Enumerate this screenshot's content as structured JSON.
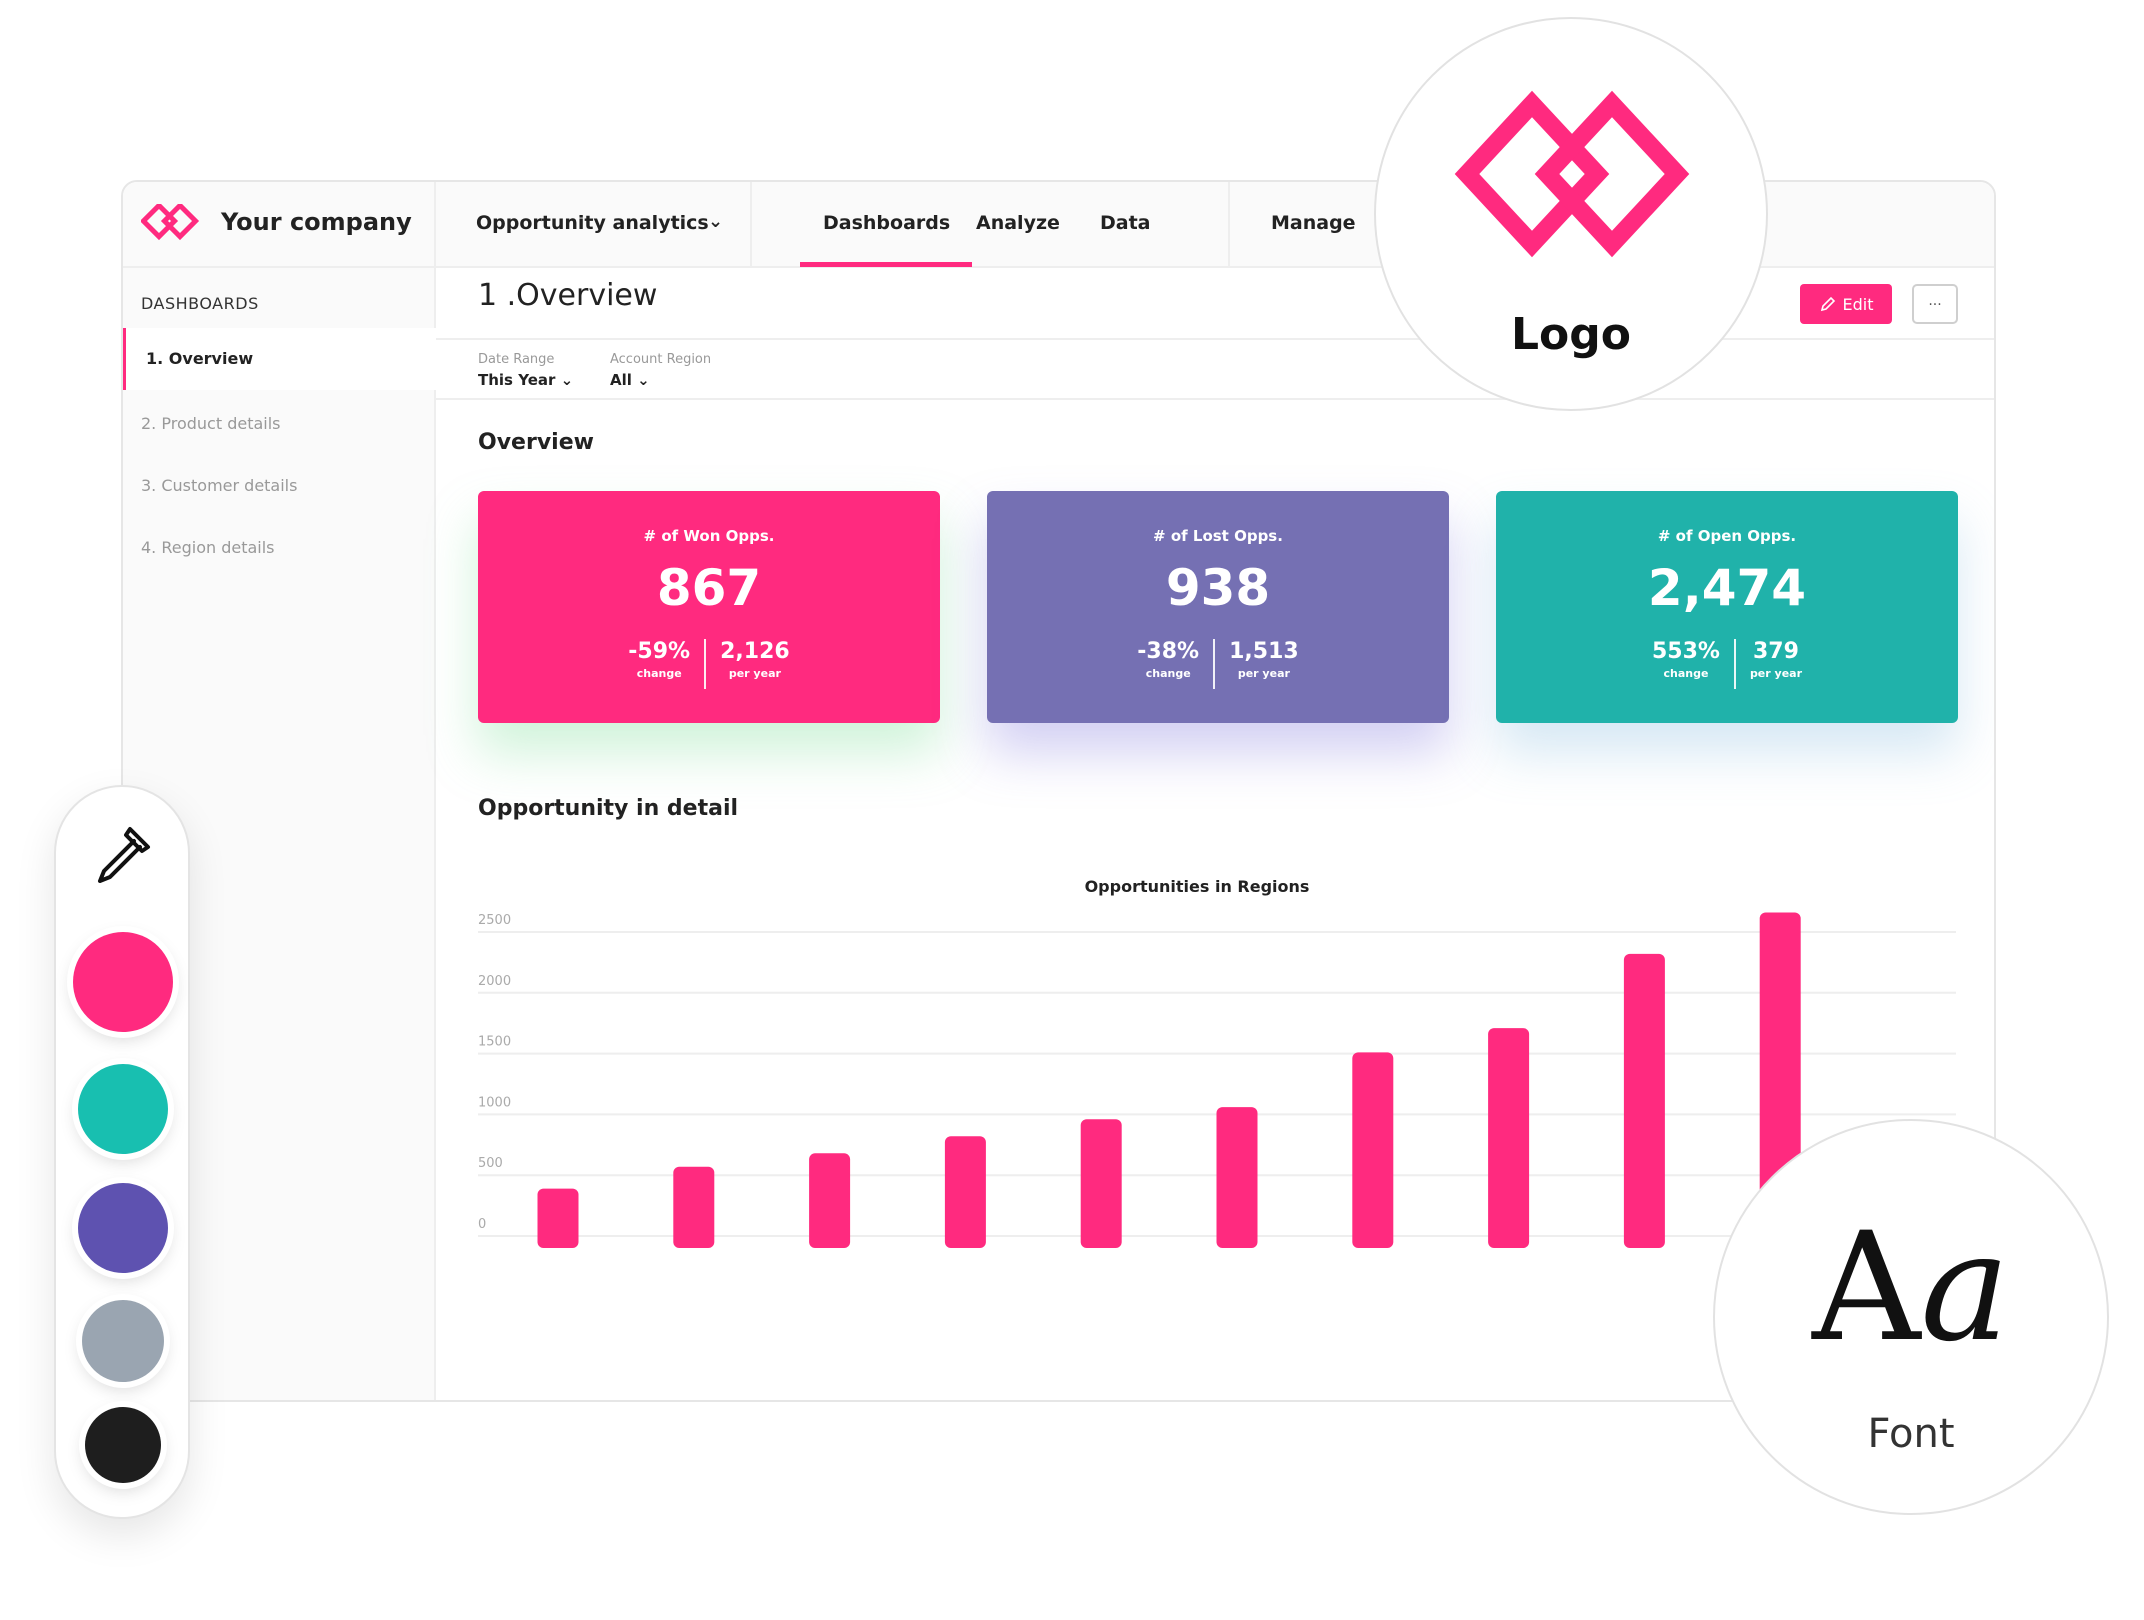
{
  "brand": {
    "name": "Your company",
    "accent": "#ff2a7f"
  },
  "topnav": {
    "dropdown_label": "Opportunity analytics",
    "tabs": [
      "Dashboards",
      "Analyze",
      "Data",
      "Manage"
    ],
    "active_tab": "Dashboards"
  },
  "sidebar": {
    "heading": "DASHBOARDS",
    "items": [
      "1. Overview",
      "2. Product details",
      "3. Customer details",
      "4. Region details"
    ],
    "active_item": "1. Overview"
  },
  "page": {
    "title": "1 .Overview",
    "edit_label": "Edit",
    "more_label": "..."
  },
  "filters": [
    {
      "label": "Date Range",
      "value": "This Year"
    },
    {
      "label": "Account Region",
      "value": "All"
    }
  ],
  "sections": {
    "overview": "Overview",
    "detail": "Opportunity in detail"
  },
  "cards": [
    {
      "label": "# of Won Opps.",
      "value": "867",
      "change": "-59%",
      "change_label": "change",
      "per_year": "2,126",
      "per_year_label": "per year",
      "color": "#ff2a7f"
    },
    {
      "label": "# of Lost Opps.",
      "value": "938",
      "change": "-38%",
      "change_label": "change",
      "per_year": "1,513",
      "per_year_label": "per year",
      "color": "#7570b3"
    },
    {
      "label": "# of Open Opps.",
      "value": "2,474",
      "change": "553%",
      "change_label": "change",
      "per_year": "379",
      "per_year_label": "per year",
      "color": "#20b2aa"
    }
  ],
  "chart_data": {
    "type": "bar",
    "title": "Opportunities in Regions",
    "categories": [
      "",
      "",
      "",
      "",
      "",
      "",
      "",
      "",
      "",
      ""
    ],
    "values": [
      390,
      570,
      680,
      820,
      960,
      1060,
      1510,
      1710,
      2320,
      2660
    ],
    "ylim": [
      0,
      2500
    ],
    "yticks": [
      0,
      500,
      1000,
      1500,
      2000,
      2500
    ],
    "grid": true,
    "bar_color": "#ff2a7f"
  },
  "palette": {
    "swatches": [
      "#ff2a7f",
      "#18bfb0",
      "#5e52b0",
      "#9aa5b1",
      "#1e1e1e"
    ]
  },
  "logo_badge": {
    "label": "Logo"
  },
  "font_badge": {
    "sample_upper": "A",
    "sample_lower": "a",
    "label": "Font"
  }
}
